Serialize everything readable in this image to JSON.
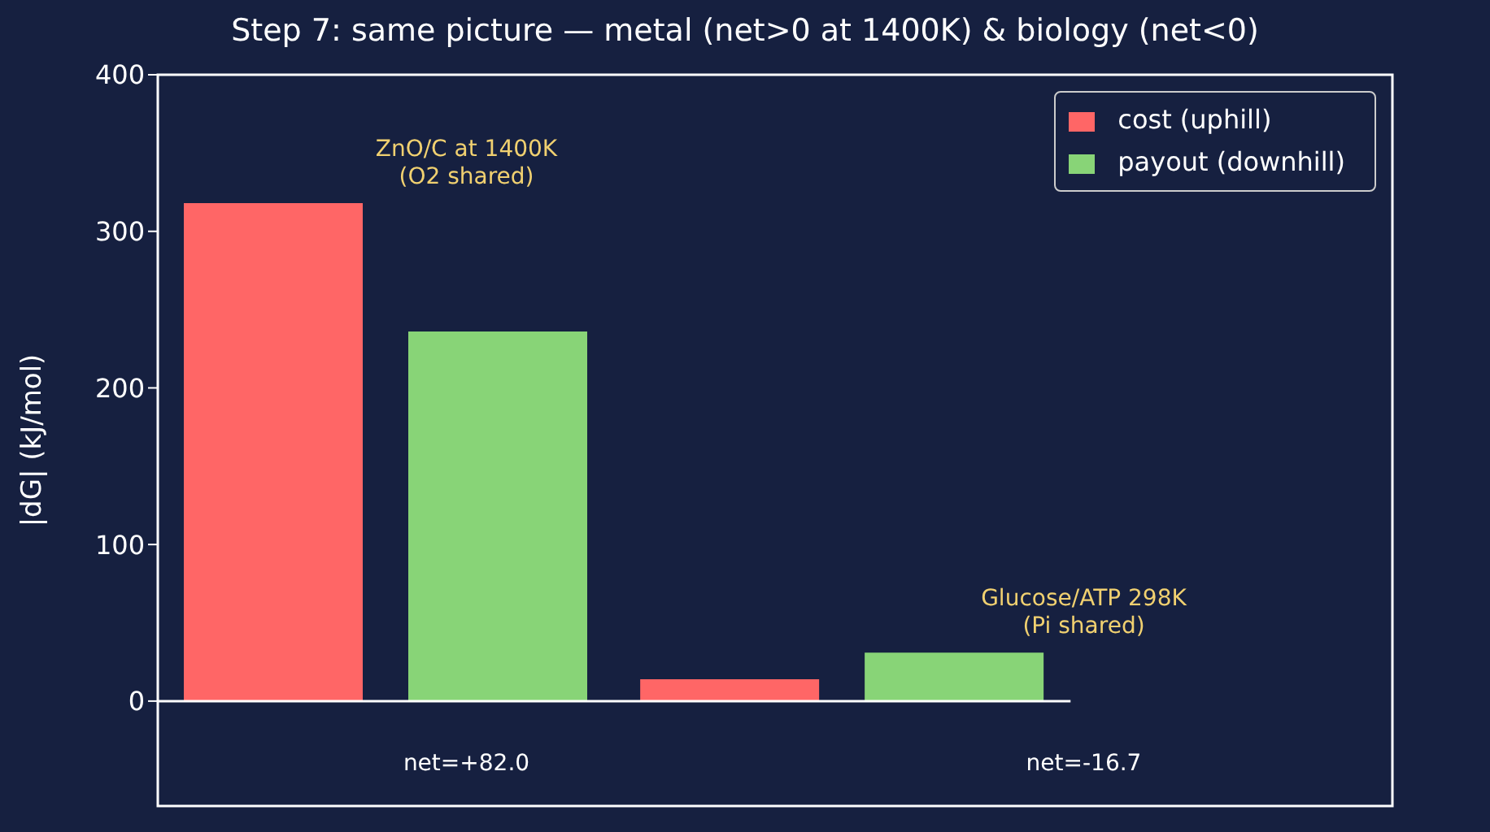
{
  "chart_data": {
    "type": "bar",
    "title": "Step 7: same picture — metal (net>0 at 1400K) & biology (net<0)",
    "ylabel": "|dG| (kJ/mol)",
    "categories": [
      null,
      null
    ],
    "series": [
      {
        "name": "cost (uphill)",
        "color": "#ff6666",
        "values": [
          318,
          14
        ]
      },
      {
        "name": "payout (downhill)",
        "color": "#88d477",
        "values": [
          236,
          31
        ]
      }
    ],
    "ylim": [
      -67,
      400
    ],
    "yticks": [
      0,
      100,
      200,
      300,
      400
    ],
    "grid": false,
    "legend": "top right",
    "tick_labels": "y",
    "ref_lines": [
      {
        "axis": "y",
        "value": 0,
        "color": "#ffffff"
      }
    ],
    "annotations": [
      "ZnO/C at 1400K\n(O2 shared)",
      "Glucose/ATP 298K\n(Pi shared)",
      "net=+82.0",
      "net=-16.7"
    ]
  }
}
